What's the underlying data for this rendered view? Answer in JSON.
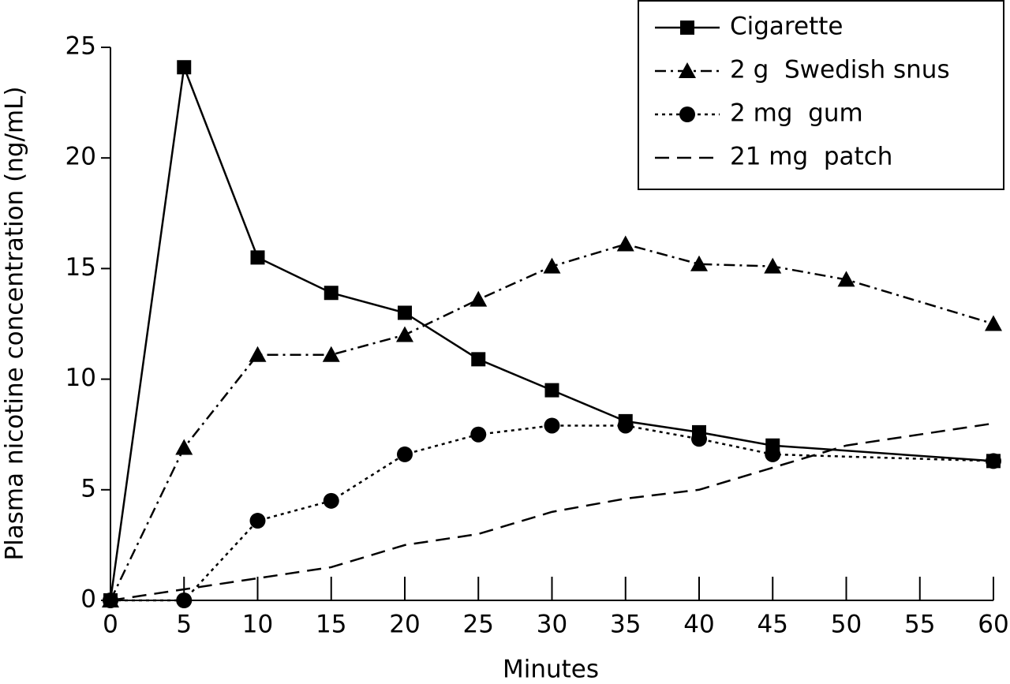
{
  "chart_data": {
    "type": "line",
    "xlabel": "Minutes",
    "ylabel": "Plasma nicotine concentration (ng/mL)",
    "xlim": [
      0,
      60
    ],
    "xticks": [
      0,
      5,
      10,
      15,
      20,
      25,
      30,
      35,
      40,
      45,
      50,
      55,
      60
    ],
    "ylim": [
      0,
      25
    ],
    "yticks": [
      0,
      5,
      10,
      15,
      20,
      25
    ],
    "legend": "upper right",
    "series": [
      {
        "name": "Cigarette",
        "color": "#000000",
        "dash": "solid",
        "marker": "square",
        "x": [
          0,
          5,
          10,
          15,
          20,
          25,
          30,
          35,
          40,
          45,
          60
        ],
        "values": [
          0,
          24.1,
          15.5,
          13.9,
          13.0,
          10.9,
          9.5,
          8.1,
          7.6,
          7.0,
          6.3
        ]
      },
      {
        "name": "2 g  Swedish snus",
        "color": "#000000",
        "dash": "dashdot",
        "marker": "triangle",
        "x": [
          0,
          5,
          10,
          15,
          20,
          25,
          30,
          35,
          40,
          45,
          50,
          60
        ],
        "values": [
          0,
          6.9,
          11.1,
          11.1,
          12.0,
          13.6,
          15.1,
          16.1,
          15.2,
          15.1,
          14.5,
          12.5
        ]
      },
      {
        "name": "2 mg  gum",
        "color": "#000000",
        "dash": "dotted",
        "marker": "circle",
        "x": [
          0,
          5,
          10,
          15,
          20,
          25,
          30,
          35,
          40,
          45,
          60
        ],
        "values": [
          0,
          0,
          3.6,
          4.5,
          6.6,
          7.5,
          7.9,
          7.9,
          7.3,
          6.6,
          6.3
        ]
      },
      {
        "name": "21 mg  patch",
        "color": "#000000",
        "dash": "dashed",
        "marker": null,
        "x": [
          0,
          5,
          10,
          15,
          20,
          25,
          30,
          35,
          40,
          45,
          50,
          60
        ],
        "values": [
          0,
          0.5,
          1.0,
          1.5,
          2.5,
          3.0,
          4.0,
          4.6,
          5.0,
          6.0,
          7.0,
          8.0
        ]
      }
    ]
  }
}
